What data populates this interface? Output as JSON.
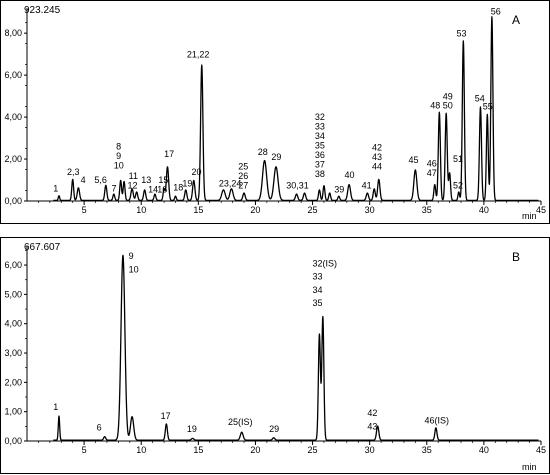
{
  "chart_data": [
    {
      "type": "line",
      "panel_letter": "A",
      "max_label": "923.245",
      "xlabel": "min",
      "xlim": [
        0,
        45
      ],
      "ylim": [
        0,
        9.2
      ],
      "x_ticks": [
        "5",
        "10",
        "15",
        "20",
        "25",
        "30",
        "35",
        "40",
        "45"
      ],
      "y_ticks": [
        "0,00",
        "2,00",
        "4,00",
        "6,00",
        "8,00"
      ],
      "peaks": [
        {
          "x": 2.8,
          "y": 0.22,
          "w": 0.06
        },
        {
          "x": 4.0,
          "y": 1.0,
          "w": 0.08
        },
        {
          "x": 4.5,
          "y": 0.6,
          "w": 0.1
        },
        {
          "x": 6.9,
          "y": 0.72,
          "w": 0.09
        },
        {
          "x": 7.6,
          "y": 0.3,
          "w": 0.08
        },
        {
          "x": 8.2,
          "y": 0.95,
          "w": 0.08
        },
        {
          "x": 8.5,
          "y": 0.9,
          "w": 0.08
        },
        {
          "x": 9.2,
          "y": 0.55,
          "w": 0.1
        },
        {
          "x": 9.6,
          "y": 0.4,
          "w": 0.09
        },
        {
          "x": 10.3,
          "y": 0.5,
          "w": 0.09
        },
        {
          "x": 11.2,
          "y": 0.3,
          "w": 0.08
        },
        {
          "x": 12.0,
          "y": 0.55,
          "w": 0.08
        },
        {
          "x": 12.3,
          "y": 1.6,
          "w": 0.1
        },
        {
          "x": 13.0,
          "y": 0.2,
          "w": 0.07
        },
        {
          "x": 13.9,
          "y": 0.5,
          "w": 0.09
        },
        {
          "x": 14.6,
          "y": 0.95,
          "w": 0.1
        },
        {
          "x": 15.3,
          "y": 6.45,
          "w": 0.1
        },
        {
          "x": 17.2,
          "y": 0.5,
          "w": 0.15
        },
        {
          "x": 17.9,
          "y": 0.55,
          "w": 0.14
        },
        {
          "x": 19.0,
          "y": 0.35,
          "w": 0.1
        },
        {
          "x": 20.8,
          "y": 1.9,
          "w": 0.18
        },
        {
          "x": 21.8,
          "y": 1.6,
          "w": 0.18
        },
        {
          "x": 23.6,
          "y": 0.3,
          "w": 0.1
        },
        {
          "x": 24.3,
          "y": 0.35,
          "w": 0.1
        },
        {
          "x": 25.6,
          "y": 0.5,
          "w": 0.08
        },
        {
          "x": 26.0,
          "y": 0.7,
          "w": 0.08
        },
        {
          "x": 26.5,
          "y": 0.35,
          "w": 0.08
        },
        {
          "x": 27.3,
          "y": 0.2,
          "w": 0.08
        },
        {
          "x": 28.2,
          "y": 0.75,
          "w": 0.12
        },
        {
          "x": 29.8,
          "y": 0.35,
          "w": 0.1
        },
        {
          "x": 30.4,
          "y": 0.55,
          "w": 0.09
        },
        {
          "x": 30.8,
          "y": 1.0,
          "w": 0.1
        },
        {
          "x": 34.0,
          "y": 1.45,
          "w": 0.13
        },
        {
          "x": 35.7,
          "y": 0.75,
          "w": 0.08
        },
        {
          "x": 36.1,
          "y": 4.2,
          "w": 0.09
        },
        {
          "x": 36.7,
          "y": 4.15,
          "w": 0.09
        },
        {
          "x": 37.0,
          "y": 1.3,
          "w": 0.08
        },
        {
          "x": 37.8,
          "y": 0.4,
          "w": 0.07
        },
        {
          "x": 38.2,
          "y": 7.6,
          "w": 0.09
        },
        {
          "x": 39.7,
          "y": 4.45,
          "w": 0.09
        },
        {
          "x": 40.3,
          "y": 4.1,
          "w": 0.08
        },
        {
          "x": 40.7,
          "y": 8.75,
          "w": 0.09
        }
      ],
      "annotations": [
        {
          "text": "1",
          "x": 2.3,
          "y": 0.45
        },
        {
          "text": "2,3",
          "x": 3.5,
          "y": 1.25
        },
        {
          "text": "4",
          "x": 4.7,
          "y": 0.85
        },
        {
          "text": "5,6",
          "x": 5.9,
          "y": 0.85
        },
        {
          "text": "7",
          "x": 7.4,
          "y": 0.45
        },
        {
          "text": "8",
          "x": 7.8,
          "y": 2.45
        },
        {
          "text": "9",
          "x": 7.8,
          "y": 2.0
        },
        {
          "text": "10",
          "x": 7.6,
          "y": 1.55
        },
        {
          "text": "11",
          "x": 8.9,
          "y": 1.05
        },
        {
          "text": "12",
          "x": 8.8,
          "y": 0.6
        },
        {
          "text": "13",
          "x": 10.0,
          "y": 0.85
        },
        {
          "text": "14",
          "x": 10.6,
          "y": 0.4
        },
        {
          "text": "15",
          "x": 11.5,
          "y": 0.85
        },
        {
          "text": "16",
          "x": 11.4,
          "y": 0.4
        },
        {
          "text": "17",
          "x": 12.0,
          "y": 2.1
        },
        {
          "text": "18",
          "x": 12.8,
          "y": 0.5
        },
        {
          "text": "19",
          "x": 13.6,
          "y": 0.7
        },
        {
          "text": "20",
          "x": 14.4,
          "y": 1.25
        },
        {
          "text": "21,22",
          "x": 14.0,
          "y": 6.85
        },
        {
          "text": "23,24",
          "x": 16.8,
          "y": 0.7
        },
        {
          "text": "25",
          "x": 18.5,
          "y": 1.5
        },
        {
          "text": "26",
          "x": 18.5,
          "y": 1.05
        },
        {
          "text": "27",
          "x": 18.5,
          "y": 0.6
        },
        {
          "text": "28",
          "x": 20.2,
          "y": 2.2
        },
        {
          "text": "29",
          "x": 21.4,
          "y": 1.95
        },
        {
          "text": "30,31",
          "x": 22.7,
          "y": 0.6
        },
        {
          "text": "32",
          "x": 25.2,
          "y": 3.85
        },
        {
          "text": "33",
          "x": 25.2,
          "y": 3.4
        },
        {
          "text": "34",
          "x": 25.2,
          "y": 2.95
        },
        {
          "text": "35",
          "x": 25.2,
          "y": 2.5
        },
        {
          "text": "36",
          "x": 25.2,
          "y": 2.05
        },
        {
          "text": "37",
          "x": 25.2,
          "y": 1.6
        },
        {
          "text": "38",
          "x": 25.2,
          "y": 1.15
        },
        {
          "text": "39",
          "x": 26.9,
          "y": 0.4
        },
        {
          "text": "40",
          "x": 27.8,
          "y": 1.1
        },
        {
          "text": "41",
          "x": 29.3,
          "y": 0.6
        },
        {
          "text": "42",
          "x": 30.2,
          "y": 2.4
        },
        {
          "text": "43",
          "x": 30.2,
          "y": 1.95
        },
        {
          "text": "44",
          "x": 30.2,
          "y": 1.5
        },
        {
          "text": "45",
          "x": 33.4,
          "y": 1.8
        },
        {
          "text": "46",
          "x": 35.0,
          "y": 1.65
        },
        {
          "text": "47",
          "x": 35.0,
          "y": 1.2
        },
        {
          "text": "48",
          "x": 35.3,
          "y": 4.4
        },
        {
          "text": "49",
          "x": 36.4,
          "y": 4.85
        },
        {
          "text": "50",
          "x": 36.4,
          "y": 4.4
        },
        {
          "text": "51",
          "x": 37.3,
          "y": 1.85
        },
        {
          "text": "52",
          "x": 37.3,
          "y": 0.6
        },
        {
          "text": "53",
          "x": 37.6,
          "y": 7.85
        },
        {
          "text": "54",
          "x": 39.2,
          "y": 4.75
        },
        {
          "text": "55",
          "x": 39.9,
          "y": 4.35
        },
        {
          "text": "56",
          "x": 40.6,
          "y": 8.9
        }
      ]
    },
    {
      "type": "line",
      "panel_letter": "B",
      "max_label": "667.607",
      "xlabel": "min",
      "xlim": [
        0,
        45
      ],
      "ylim": [
        0,
        6.65
      ],
      "x_ticks": [
        "5",
        "10",
        "15",
        "20",
        "25",
        "30",
        "35",
        "40",
        "45"
      ],
      "y_ticks": [
        "0,00",
        "1,00",
        "2,00",
        "3,00",
        "4,00",
        "5,00",
        "6,00"
      ],
      "peaks": [
        {
          "x": 2.8,
          "y": 0.82,
          "w": 0.06
        },
        {
          "x": 6.8,
          "y": 0.12,
          "w": 0.09
        },
        {
          "x": 8.4,
          "y": 6.3,
          "w": 0.17
        },
        {
          "x": 9.2,
          "y": 0.8,
          "w": 0.14
        },
        {
          "x": 12.2,
          "y": 0.55,
          "w": 0.09
        },
        {
          "x": 14.5,
          "y": 0.06,
          "w": 0.1
        },
        {
          "x": 18.8,
          "y": 0.27,
          "w": 0.12
        },
        {
          "x": 21.6,
          "y": 0.08,
          "w": 0.1
        },
        {
          "x": 25.6,
          "y": 3.6,
          "w": 0.09
        },
        {
          "x": 25.9,
          "y": 4.2,
          "w": 0.09
        },
        {
          "x": 30.7,
          "y": 0.48,
          "w": 0.1
        },
        {
          "x": 35.8,
          "y": 0.42,
          "w": 0.09
        }
      ],
      "annotations": [
        {
          "text": "1",
          "x": 2.3,
          "y": 1.05
        },
        {
          "text": "6",
          "x": 6.1,
          "y": 0.35
        },
        {
          "text": "9",
          "x": 8.9,
          "y": 6.2
        },
        {
          "text": "10",
          "x": 8.9,
          "y": 5.75
        },
        {
          "text": "17",
          "x": 11.7,
          "y": 0.75
        },
        {
          "text": "19",
          "x": 14.0,
          "y": 0.3
        },
        {
          "text": "25(IS)",
          "x": 17.6,
          "y": 0.55
        },
        {
          "text": "29",
          "x": 21.2,
          "y": 0.3
        },
        {
          "text": "32(IS)",
          "x": 25.0,
          "y": 5.95
        },
        {
          "text": "33",
          "x": 25.0,
          "y": 5.5
        },
        {
          "text": "34",
          "x": 25.0,
          "y": 5.05
        },
        {
          "text": "35",
          "x": 25.0,
          "y": 4.6
        },
        {
          "text": "42",
          "x": 29.8,
          "y": 0.85
        },
        {
          "text": "43",
          "x": 29.8,
          "y": 0.4
        },
        {
          "text": "46(IS)",
          "x": 34.8,
          "y": 0.6
        }
      ]
    }
  ]
}
